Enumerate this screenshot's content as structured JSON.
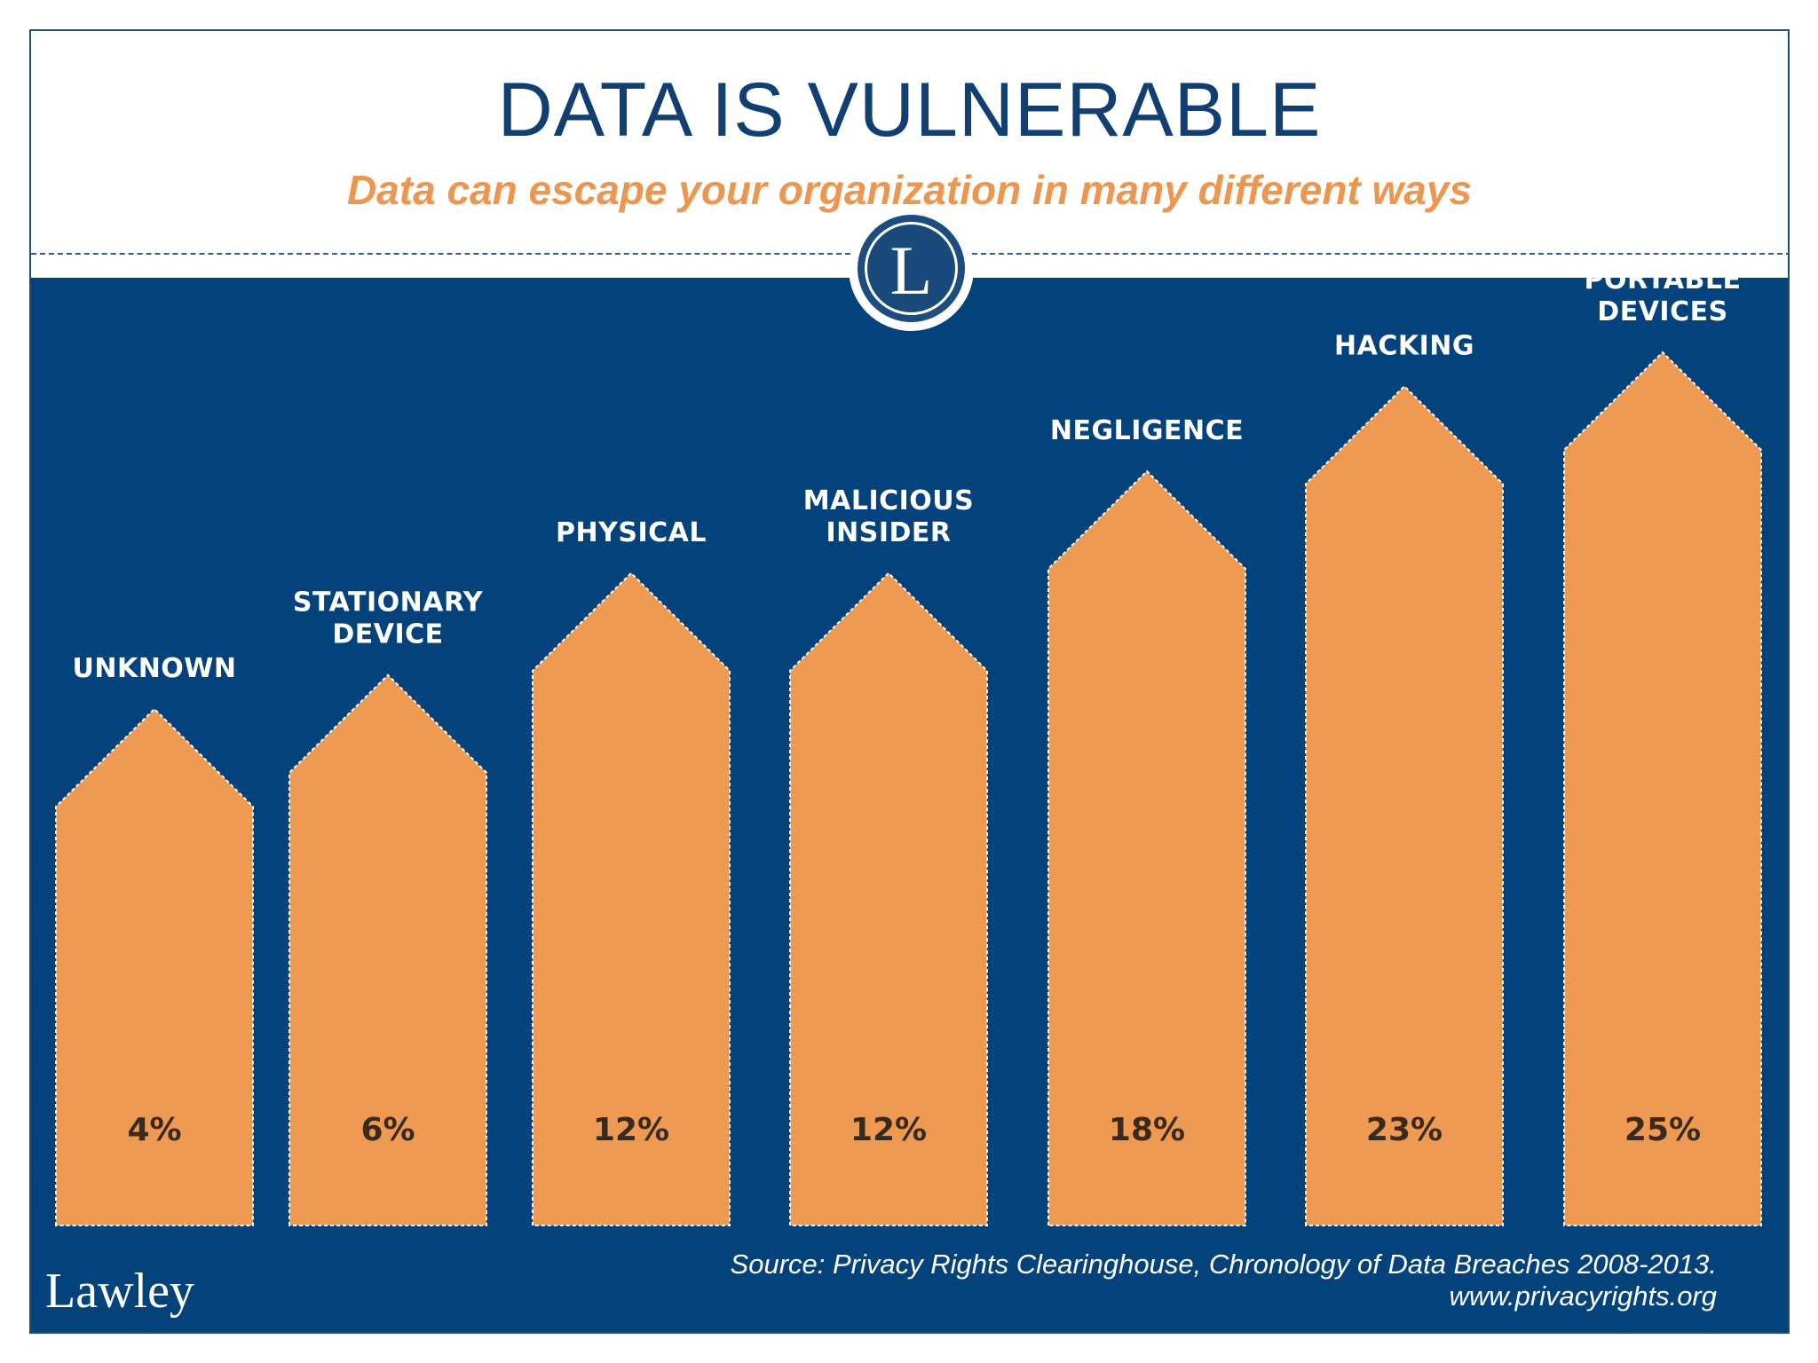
{
  "header": {
    "title": "DATA IS VULNERABLE",
    "subtitle": "Data can escape your organization in many different ways"
  },
  "logo": {
    "letter": "L",
    "icon": "circle-l-monogram-icon"
  },
  "footer": {
    "source_line1": "Source: Privacy Rights Clearinghouse, Chronology of Data Breaches 2008-2013.",
    "source_line2": "www.privacyrights.org",
    "brand": "Lawley"
  },
  "colors": {
    "panel": "#03427b",
    "bar": "#ef9a52",
    "title": "#123f72",
    "subtitle": "#ec9650"
  },
  "chart_data": {
    "type": "bar",
    "title": "DATA IS VULNERABLE",
    "categories": [
      [
        "UNKNOWN"
      ],
      [
        "STATIONARY",
        "DEVICE"
      ],
      [
        "PHYSICAL"
      ],
      [
        "MALICIOUS",
        "INSIDER"
      ],
      [
        "NEGLIGENCE"
      ],
      [
        "HACKING"
      ],
      [
        "PORTABLE",
        "DEVICES"
      ]
    ],
    "values": [
      4,
      6,
      12,
      12,
      18,
      23,
      25
    ],
    "value_labels": [
      "4%",
      "6%",
      "12%",
      "12%",
      "18%",
      "23%",
      "25%"
    ],
    "unit": "%",
    "grid": false,
    "legend": "none"
  }
}
